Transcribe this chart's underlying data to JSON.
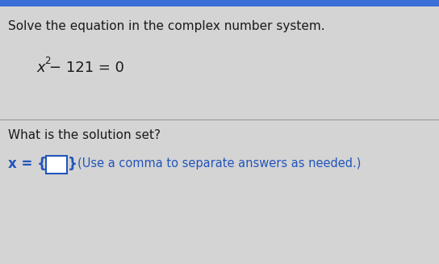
{
  "line1": "Solve the equation in the complex number system.",
  "question": "What is the solution set?",
  "answer_note": "(Use a comma to separate answers as needed.)",
  "bg_color": "#d4d4d4",
  "text_color": "#1a1a1a",
  "blue_color": "#2255bb",
  "fig_width": 5.44,
  "fig_height": 3.27,
  "dpi": 100
}
